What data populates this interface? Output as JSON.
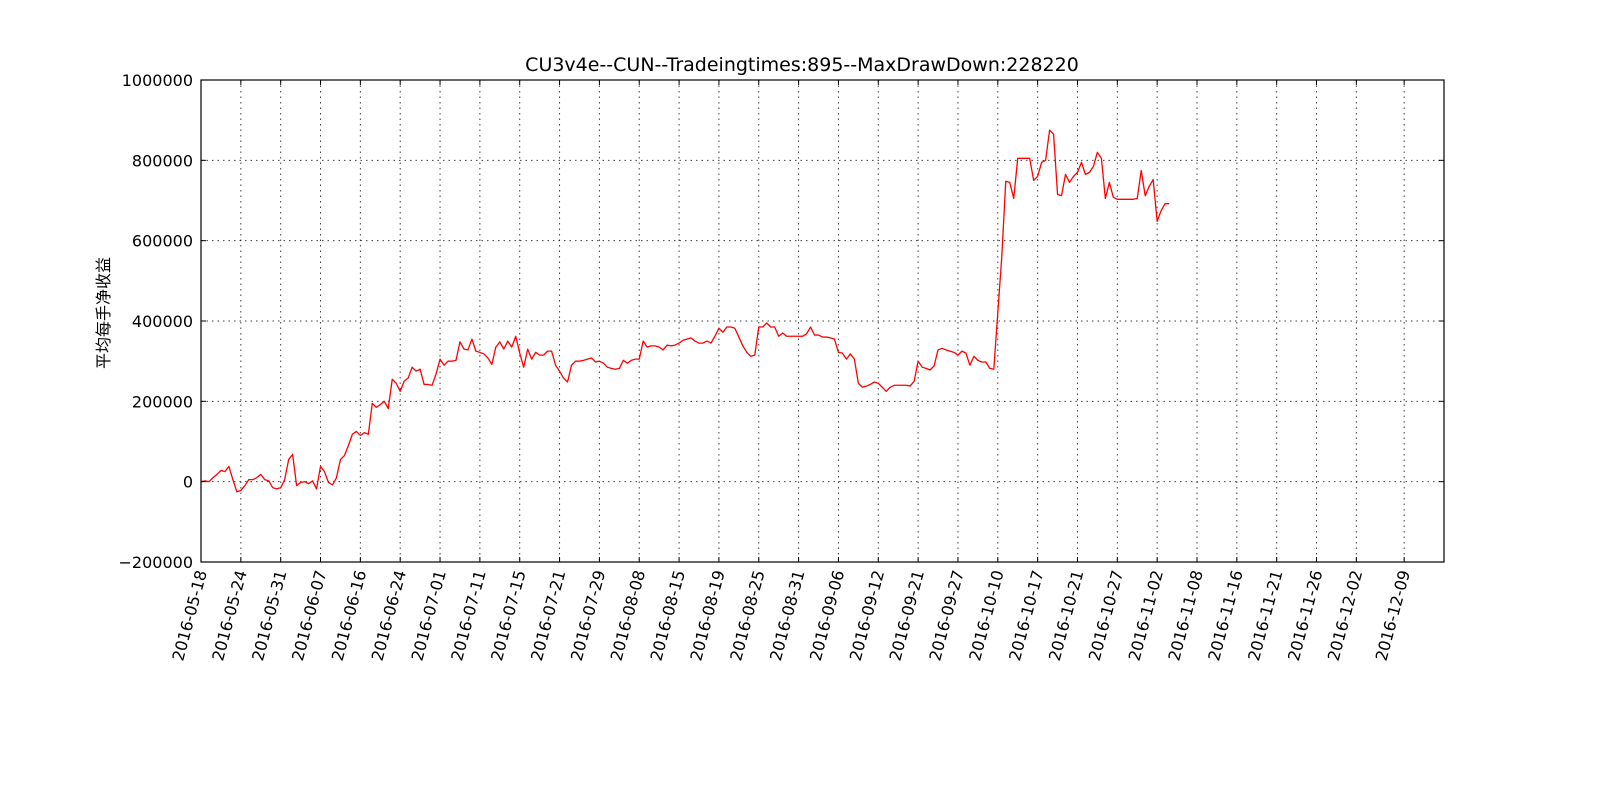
{
  "chart_data": {
    "type": "line",
    "title": "CU3v4e--CUN--Tradeingtimes:895--MaxDrawDown:228220",
    "xlabel": "",
    "ylabel": "平均每手净收益",
    "ylim": [
      -200000,
      1000000
    ],
    "yticks": [
      -200000,
      0,
      200000,
      400000,
      600000,
      800000,
      1000000
    ],
    "ytick_labels": [
      "−200000",
      "0",
      "200000",
      "400000",
      "600000",
      "800000",
      "1000000"
    ],
    "xtick_labels": [
      "2016-05-18",
      "2016-05-24",
      "2016-05-31",
      "2016-06-07",
      "2016-06-16",
      "2016-06-24",
      "2016-07-01",
      "2016-07-11",
      "2016-07-15",
      "2016-07-21",
      "2016-07-29",
      "2016-08-08",
      "2016-08-15",
      "2016-08-19",
      "2016-08-25",
      "2016-08-31",
      "2016-09-06",
      "2016-09-12",
      "2016-09-21",
      "2016-09-27",
      "2016-10-10",
      "2016-10-17",
      "2016-10-21",
      "2016-10-27",
      "2016-11-02",
      "2016-11-08",
      "2016-11-16",
      "2016-11-21",
      "2016-11-26",
      "2016-12-02",
      "2016-12-09"
    ],
    "xtick_positions": [
      0,
      10,
      20,
      30,
      40,
      50,
      60,
      70,
      80,
      90,
      100,
      110,
      120,
      130,
      140,
      150,
      160,
      170,
      180,
      190,
      200,
      210,
      220,
      230,
      240,
      250,
      260,
      270,
      280,
      290,
      302
    ],
    "xlim": [
      0,
      312
    ],
    "grid": true,
    "color": "#ff0000",
    "series": [
      {
        "name": "",
        "points": [
          [
            0,
            0
          ],
          [
            1,
            2000
          ],
          [
            2,
            0
          ],
          [
            3,
            10000
          ],
          [
            4,
            18000
          ],
          [
            5,
            28000
          ],
          [
            6,
            25000
          ],
          [
            7,
            38000
          ],
          [
            8,
            5000
          ],
          [
            9,
            -25000
          ],
          [
            10,
            -22000
          ],
          [
            11,
            -10000
          ],
          [
            12,
            5000
          ],
          [
            13,
            5000
          ],
          [
            14,
            10000
          ],
          [
            15,
            18000
          ],
          [
            16,
            5000
          ],
          [
            17,
            2000
          ],
          [
            18,
            -15000
          ],
          [
            19,
            -18000
          ],
          [
            20,
            -15000
          ],
          [
            21,
            5000
          ],
          [
            22,
            55000
          ],
          [
            23,
            68000
          ],
          [
            24,
            -10000
          ],
          [
            25,
            -2000
          ],
          [
            26,
            0
          ],
          [
            27,
            -5000
          ],
          [
            28,
            2000
          ],
          [
            29,
            -18000
          ],
          [
            30,
            38000
          ],
          [
            31,
            25000
          ],
          [
            32,
            -2000
          ],
          [
            33,
            -8000
          ],
          [
            34,
            10000
          ],
          [
            35,
            55000
          ],
          [
            36,
            65000
          ],
          [
            37,
            90000
          ],
          [
            38,
            118000
          ],
          [
            39,
            125000
          ],
          [
            40,
            115000
          ],
          [
            41,
            122000
          ],
          [
            42,
            118000
          ],
          [
            43,
            195000
          ],
          [
            44,
            185000
          ],
          [
            45,
            192000
          ],
          [
            46,
            200000
          ],
          [
            47,
            182000
          ],
          [
            48,
            255000
          ],
          [
            49,
            245000
          ],
          [
            50,
            225000
          ],
          [
            51,
            250000
          ],
          [
            52,
            258000
          ],
          [
            53,
            285000
          ],
          [
            54,
            275000
          ],
          [
            55,
            280000
          ],
          [
            56,
            242000
          ],
          [
            57,
            242000
          ],
          [
            58,
            240000
          ],
          [
            59,
            268000
          ],
          [
            60,
            305000
          ],
          [
            61,
            290000
          ],
          [
            62,
            300000
          ],
          [
            63,
            300000
          ],
          [
            64,
            302000
          ],
          [
            65,
            348000
          ],
          [
            66,
            330000
          ],
          [
            67,
            328000
          ],
          [
            68,
            355000
          ],
          [
            69,
            325000
          ],
          [
            70,
            322000
          ],
          [
            71,
            318000
          ],
          [
            72,
            308000
          ],
          [
            73,
            292000
          ],
          [
            74,
            335000
          ],
          [
            75,
            348000
          ],
          [
            76,
            330000
          ],
          [
            77,
            350000
          ],
          [
            78,
            335000
          ],
          [
            79,
            362000
          ],
          [
            80,
            320000
          ],
          [
            81,
            285000
          ],
          [
            82,
            330000
          ],
          [
            83,
            305000
          ],
          [
            84,
            322000
          ],
          [
            85,
            315000
          ],
          [
            86,
            315000
          ],
          [
            87,
            325000
          ],
          [
            88,
            325000
          ],
          [
            89,
            290000
          ],
          [
            90,
            275000
          ],
          [
            91,
            258000
          ],
          [
            92,
            248000
          ],
          [
            93,
            290000
          ],
          [
            94,
            300000
          ],
          [
            95,
            300000
          ],
          [
            96,
            302000
          ],
          [
            97,
            305000
          ],
          [
            98,
            308000
          ],
          [
            99,
            298000
          ],
          [
            100,
            300000
          ],
          [
            101,
            295000
          ],
          [
            102,
            285000
          ],
          [
            103,
            282000
          ],
          [
            104,
            280000
          ],
          [
            105,
            282000
          ],
          [
            106,
            302000
          ],
          [
            107,
            295000
          ],
          [
            108,
            302000
          ],
          [
            109,
            305000
          ],
          [
            110,
            305000
          ],
          [
            111,
            350000
          ],
          [
            112,
            335000
          ],
          [
            113,
            338000
          ],
          [
            114,
            338000
          ],
          [
            115,
            335000
          ],
          [
            116,
            328000
          ],
          [
            117,
            340000
          ],
          [
            118,
            338000
          ],
          [
            119,
            340000
          ],
          [
            120,
            345000
          ],
          [
            121,
            352000
          ],
          [
            122,
            355000
          ],
          [
            123,
            358000
          ],
          [
            124,
            350000
          ],
          [
            125,
            345000
          ],
          [
            126,
            345000
          ],
          [
            127,
            350000
          ],
          [
            128,
            345000
          ],
          [
            129,
            362000
          ],
          [
            130,
            382000
          ],
          [
            131,
            372000
          ],
          [
            132,
            385000
          ],
          [
            133,
            385000
          ],
          [
            134,
            382000
          ],
          [
            135,
            360000
          ],
          [
            136,
            338000
          ],
          [
            137,
            322000
          ],
          [
            138,
            312000
          ],
          [
            139,
            315000
          ],
          [
            140,
            385000
          ],
          [
            141,
            385000
          ],
          [
            142,
            395000
          ],
          [
            143,
            385000
          ],
          [
            144,
            385000
          ],
          [
            145,
            362000
          ],
          [
            146,
            370000
          ],
          [
            147,
            362000
          ],
          [
            148,
            362000
          ],
          [
            149,
            362000
          ],
          [
            150,
            362000
          ],
          [
            151,
            362000
          ],
          [
            152,
            368000
          ],
          [
            153,
            385000
          ],
          [
            154,
            365000
          ],
          [
            155,
            365000
          ],
          [
            156,
            360000
          ],
          [
            157,
            360000
          ],
          [
            158,
            358000
          ],
          [
            159,
            355000
          ],
          [
            160,
            322000
          ],
          [
            161,
            320000
          ],
          [
            162,
            305000
          ],
          [
            163,
            318000
          ],
          [
            164,
            305000
          ],
          [
            165,
            245000
          ],
          [
            166,
            235000
          ],
          [
            167,
            238000
          ],
          [
            168,
            242000
          ],
          [
            169,
            248000
          ],
          [
            170,
            245000
          ],
          [
            171,
            235000
          ],
          [
            172,
            225000
          ],
          [
            173,
            235000
          ],
          [
            174,
            240000
          ],
          [
            175,
            240000
          ],
          [
            176,
            240000
          ],
          [
            177,
            240000
          ],
          [
            178,
            238000
          ],
          [
            179,
            250000
          ],
          [
            180,
            300000
          ],
          [
            181,
            285000
          ],
          [
            182,
            282000
          ],
          [
            183,
            278000
          ],
          [
            184,
            288000
          ],
          [
            185,
            328000
          ],
          [
            186,
            332000
          ],
          [
            187,
            328000
          ],
          [
            188,
            325000
          ],
          [
            189,
            322000
          ],
          [
            190,
            315000
          ],
          [
            191,
            325000
          ],
          [
            192,
            320000
          ],
          [
            193,
            290000
          ],
          [
            194,
            312000
          ],
          [
            195,
            302000
          ],
          [
            196,
            298000
          ],
          [
            197,
            298000
          ],
          [
            198,
            282000
          ],
          [
            199,
            280000
          ],
          [
            200,
            420000
          ],
          [
            201,
            560000
          ],
          [
            202,
            748000
          ],
          [
            203,
            745000
          ],
          [
            204,
            705000
          ],
          [
            205,
            805000
          ],
          [
            206,
            805000
          ],
          [
            207,
            805000
          ],
          [
            208,
            805000
          ],
          [
            209,
            750000
          ],
          [
            210,
            760000
          ],
          [
            211,
            795000
          ],
          [
            212,
            800000
          ],
          [
            213,
            875000
          ],
          [
            214,
            865000
          ],
          [
            215,
            715000
          ],
          [
            216,
            712000
          ],
          [
            217,
            765000
          ],
          [
            218,
            745000
          ],
          [
            219,
            760000
          ],
          [
            220,
            770000
          ],
          [
            221,
            795000
          ],
          [
            222,
            765000
          ],
          [
            223,
            770000
          ],
          [
            224,
            785000
          ],
          [
            225,
            820000
          ],
          [
            226,
            805000
          ],
          [
            227,
            705000
          ],
          [
            228,
            745000
          ],
          [
            229,
            708000
          ],
          [
            230,
            703000
          ],
          [
            231,
            703000
          ],
          [
            232,
            703000
          ],
          [
            233,
            703000
          ],
          [
            234,
            703000
          ],
          [
            235,
            705000
          ],
          [
            236,
            775000
          ],
          [
            237,
            712000
          ],
          [
            238,
            735000
          ],
          [
            239,
            752000
          ],
          [
            240,
            648000
          ],
          [
            241,
            675000
          ],
          [
            242,
            692000
          ],
          [
            243,
            692000
          ]
        ]
      }
    ]
  }
}
